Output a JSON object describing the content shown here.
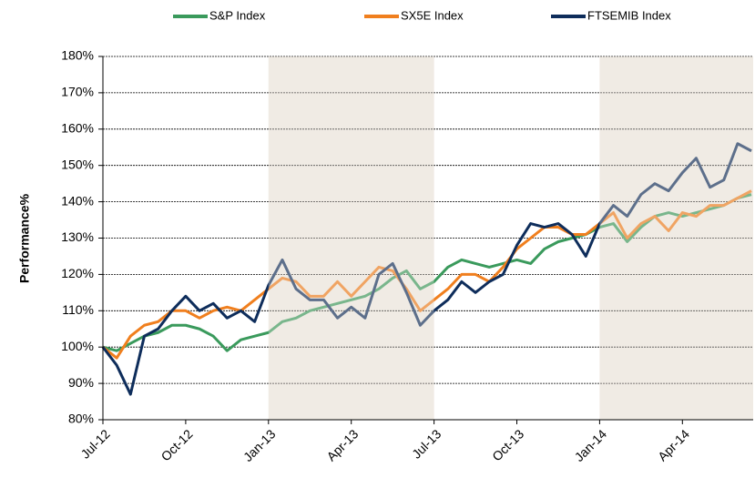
{
  "chart_data": {
    "type": "line",
    "y_label": "Performance%",
    "categories": [
      "Jul-12",
      null,
      null,
      null,
      null,
      null,
      "Oct-12",
      null,
      null,
      null,
      null,
      null,
      "Jan-13",
      null,
      null,
      null,
      null,
      null,
      "Apr-13",
      null,
      null,
      null,
      null,
      null,
      "Jul-13",
      null,
      null,
      null,
      null,
      null,
      "Oct-13",
      null,
      null,
      null,
      null,
      null,
      "Jan-14",
      null,
      null,
      null,
      null,
      null,
      "Apr-14",
      null,
      null,
      null,
      null,
      null
    ],
    "series": [
      {
        "name": "S&P Index",
        "color": "#3a9a5c",
        "values": [
          100,
          99,
          101,
          103,
          104,
          106,
          106,
          105,
          103,
          99,
          102,
          103,
          104,
          107,
          108,
          110,
          111,
          112,
          113,
          114,
          116,
          119,
          121,
          116,
          118,
          122,
          124,
          123,
          122,
          123,
          124,
          123,
          127,
          129,
          130,
          131,
          133,
          134,
          129,
          133,
          136,
          137,
          136,
          137,
          138,
          139,
          141,
          142
        ]
      },
      {
        "name": "SX5E Index",
        "color": "#f07f1e",
        "values": [
          100,
          97,
          103,
          106,
          107,
          110,
          110,
          108,
          110,
          111,
          110,
          113,
          116,
          119,
          118,
          114,
          114,
          118,
          114,
          118,
          122,
          121,
          116,
          110,
          113,
          116,
          120,
          120,
          118,
          122,
          127,
          130,
          133,
          133,
          131,
          131,
          134,
          137,
          130,
          134,
          136,
          132,
          137,
          136,
          139,
          139,
          141,
          143
        ]
      },
      {
        "name": "FTSEMIB Index",
        "color": "#0e2d5b",
        "values": [
          100,
          95,
          87,
          103,
          105,
          110,
          114,
          110,
          112,
          108,
          110,
          107,
          117,
          124,
          116,
          113,
          113,
          108,
          111,
          108,
          120,
          123,
          115,
          106,
          110,
          113,
          118,
          115,
          118,
          120,
          128,
          134,
          133,
          134,
          131,
          125,
          134,
          139,
          136,
          142,
          145,
          143,
          148,
          152,
          144,
          146,
          156,
          154
        ]
      }
    ],
    "ylim": [
      80,
      180
    ],
    "yticks": [
      {
        "value": 80,
        "label": "80%"
      },
      {
        "value": 90,
        "label": "90%"
      },
      {
        "value": 100,
        "label": "100%"
      },
      {
        "value": 110,
        "label": "110%"
      },
      {
        "value": 120,
        "label": "120%"
      },
      {
        "value": 130,
        "label": "130%"
      },
      {
        "value": 140,
        "label": "140%"
      },
      {
        "value": 150,
        "label": "150%"
      },
      {
        "value": 160,
        "label": "160%"
      },
      {
        "value": 170,
        "label": "170%"
      },
      {
        "value": 180,
        "label": "180%"
      }
    ],
    "grid": true,
    "legend": "top",
    "shaded_periods": [
      {
        "from": "Jan-13",
        "to": "Jul-13"
      },
      {
        "from": "Jan-14"
      }
    ]
  }
}
